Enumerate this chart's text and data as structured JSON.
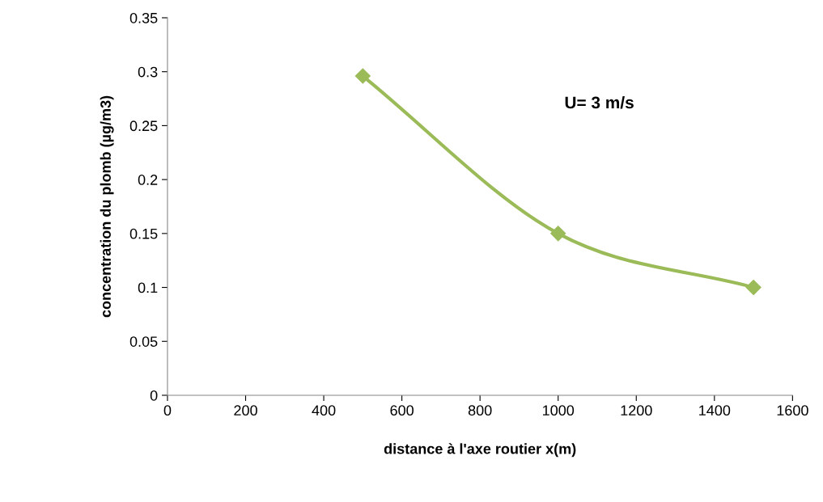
{
  "chart_data": {
    "type": "line",
    "xlabel": "distance à l'axe routier x(m)",
    "ylabel": "concentration du plomb (µg/m3)",
    "x": [
      500,
      1000,
      1500
    ],
    "series": [
      {
        "color": "#9bbb59",
        "values": [
          0.296,
          0.15,
          0.1
        ]
      }
    ],
    "marker": "diamond",
    "line_style": "solid",
    "grid": false,
    "xlim": [
      0,
      1600
    ],
    "xticks": [
      0,
      200,
      400,
      600,
      800,
      1000,
      1200,
      1400,
      1600
    ],
    "ylim": [
      0,
      0.35
    ],
    "yticks": [
      0,
      0.05,
      0.1,
      0.15,
      0.2,
      0.25,
      0.3,
      0.35
    ],
    "annotations": [
      "U= 3 m/s"
    ]
  }
}
